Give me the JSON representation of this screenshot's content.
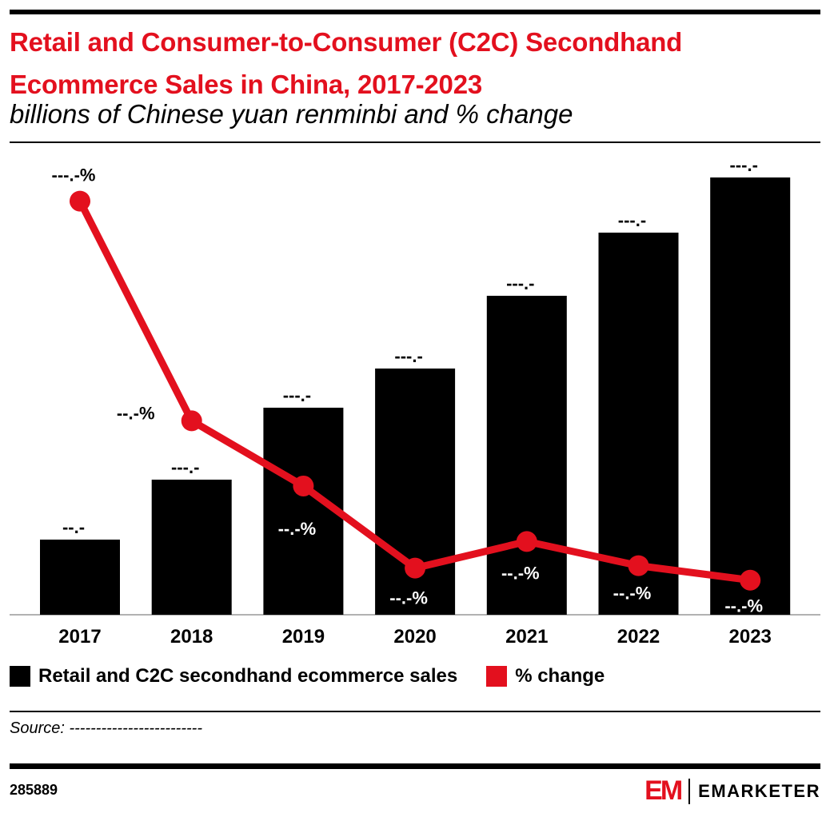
{
  "header": {
    "title": "Retail and Consumer-to-Consumer (C2C) Secondhand Ecommerce Sales in China, 2017-2023",
    "subtitle": "billions of Chinese yuan renminbi and % change"
  },
  "chart_data": {
    "type": "bar",
    "title": "Retail and Consumer-to-Consumer (C2C) Secondhand Ecommerce Sales in China, 2017-2023",
    "subtitle": "billions of Chinese yuan renminbi and % change",
    "categories": [
      "2017",
      "2018",
      "2019",
      "2020",
      "2021",
      "2022",
      "2023"
    ],
    "series": [
      {
        "name": "Retail and C2C secondhand ecommerce sales",
        "type": "bar",
        "color": "#000000",
        "values": [
          94,
          169,
          259,
          308,
          399,
          478,
          547
        ],
        "labels": [
          "--.-",
          "---.-",
          "---.-",
          "---.-",
          "---.-",
          "---.-",
          "---.-"
        ]
      },
      {
        "name": "% change",
        "type": "line",
        "color": "#e3101e",
        "values": [
          171,
          80,
          53,
          19,
          30,
          20,
          14
        ],
        "labels": [
          "---.-%",
          "--.-%",
          "--.-%",
          "--.-%",
          "--.-%",
          "--.-%",
          "--.-%"
        ]
      }
    ],
    "grid": false,
    "legend": "bottom"
  },
  "source": "Source: -------------------------",
  "footer": {
    "id": "285889",
    "brand": "EMARKETER",
    "logo": "EM"
  }
}
